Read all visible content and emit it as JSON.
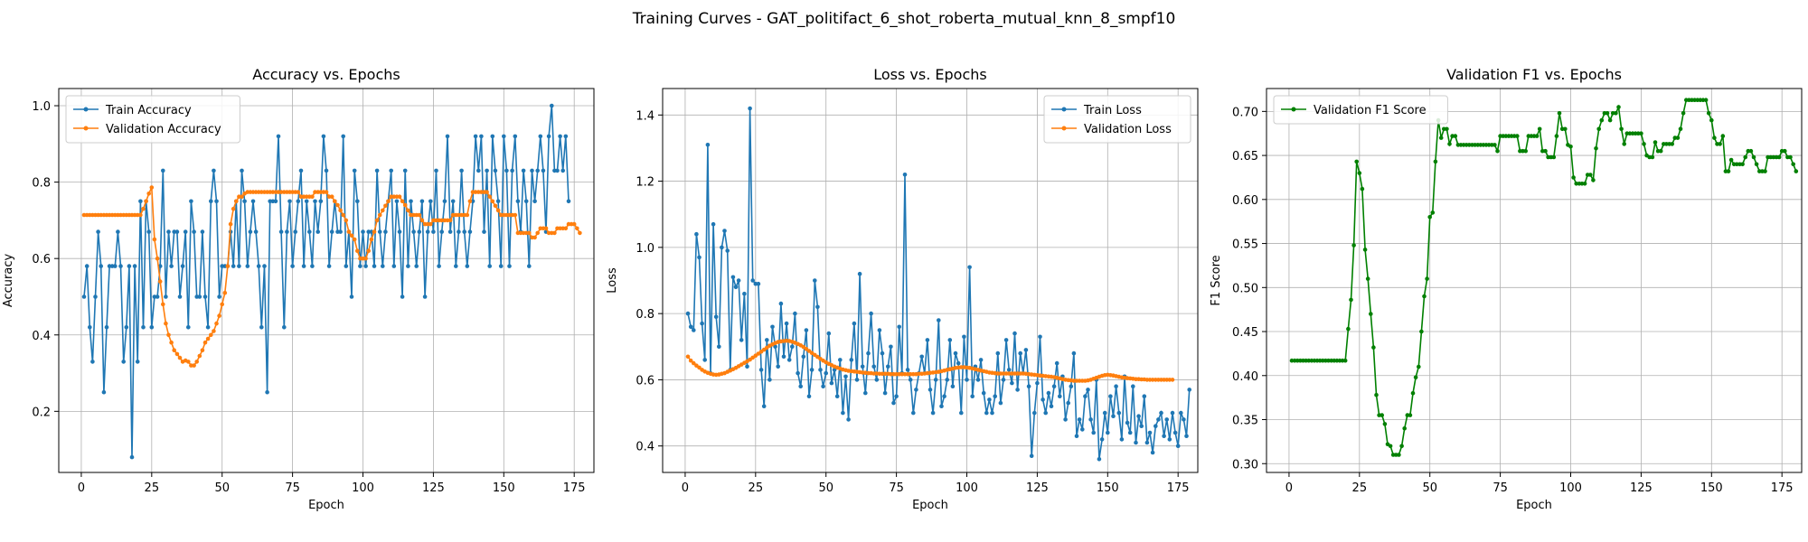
{
  "figure_title": "Training Curves - GAT_politifact_6_shot_roberta_mutual_knn_8_smpf10",
  "colors": {
    "train": "#1f77b4",
    "validation": "#ff7f0e",
    "f1": "#008000",
    "grid": "#b0b0b0"
  },
  "chart_data": [
    {
      "type": "line",
      "title": "Accuracy vs. Epochs",
      "xlabel": "Epoch",
      "ylabel": "Accuracy",
      "xlim": [
        -8,
        182
      ],
      "ylim": [
        0.04,
        1.045
      ],
      "xticks": [
        0,
        25,
        50,
        75,
        100,
        125,
        150,
        175
      ],
      "yticks": [
        0.2,
        0.4,
        0.6,
        0.8,
        1.0
      ],
      "ytick_decimals": 1,
      "grid": true,
      "legend": "top-left",
      "series": [
        {
          "name": "Train Accuracy",
          "color": "#1f77b4",
          "x_start": 1,
          "values": [
            0.5,
            0.58,
            0.42,
            0.33,
            0.5,
            0.67,
            0.58,
            0.25,
            0.42,
            0.58,
            0.58,
            0.58,
            0.67,
            0.58,
            0.33,
            0.42,
            0.58,
            0.08,
            0.58,
            0.33,
            0.75,
            0.42,
            0.75,
            0.67,
            0.42,
            0.5,
            0.5,
            0.58,
            0.83,
            0.5,
            0.67,
            0.58,
            0.67,
            0.67,
            0.5,
            0.58,
            0.67,
            0.42,
            0.75,
            0.67,
            0.5,
            0.5,
            0.67,
            0.5,
            0.42,
            0.75,
            0.83,
            0.75,
            0.5,
            0.58,
            0.58,
            0.58,
            0.67,
            0.58,
            0.75,
            0.58,
            0.83,
            0.75,
            0.58,
            0.67,
            0.75,
            0.67,
            0.58,
            0.42,
            0.58,
            0.25,
            0.75,
            0.75,
            0.75,
            0.92,
            0.67,
            0.42,
            0.67,
            0.75,
            0.58,
            0.67,
            0.75,
            0.83,
            0.58,
            0.75,
            0.67,
            0.58,
            0.75,
            0.67,
            0.75,
            0.92,
            0.83,
            0.58,
            0.67,
            0.75,
            0.67,
            0.67,
            0.92,
            0.58,
            0.67,
            0.5,
            0.83,
            0.75,
            0.58,
            0.67,
            0.58,
            0.67,
            0.67,
            0.58,
            0.83,
            0.67,
            0.58,
            0.67,
            0.75,
            0.83,
            0.58,
            0.75,
            0.67,
            0.5,
            0.83,
            0.58,
            0.75,
            0.67,
            0.58,
            0.67,
            0.75,
            0.5,
            0.67,
            0.75,
            0.67,
            0.83,
            0.58,
            0.67,
            0.75,
            0.92,
            0.67,
            0.75,
            0.58,
            0.67,
            0.83,
            0.67,
            0.58,
            0.67,
            0.75,
            0.92,
            0.83,
            0.92,
            0.67,
            0.83,
            0.58,
            0.92,
            0.83,
            0.75,
            0.58,
            0.92,
            0.83,
            0.58,
            0.83,
            0.92,
            0.75,
            0.67,
            0.83,
            0.75,
            0.58,
            0.83,
            0.75,
            0.83,
            0.92,
            0.83,
            0.67,
            0.92,
            1.0,
            0.83,
            0.83,
            0.92,
            0.83,
            0.92,
            0.75
          ]
        },
        {
          "name": "Validation Accuracy",
          "color": "#ff7f0e",
          "x_start": 1,
          "values": [
            0.714,
            0.714,
            0.714,
            0.714,
            0.714,
            0.714,
            0.714,
            0.714,
            0.714,
            0.714,
            0.714,
            0.714,
            0.714,
            0.714,
            0.714,
            0.714,
            0.714,
            0.714,
            0.714,
            0.714,
            0.714,
            0.73,
            0.75,
            0.77,
            0.786,
            0.65,
            0.6,
            0.54,
            0.48,
            0.43,
            0.4,
            0.38,
            0.36,
            0.35,
            0.34,
            0.33,
            0.333,
            0.33,
            0.32,
            0.32,
            0.33,
            0.345,
            0.36,
            0.38,
            0.39,
            0.4,
            0.41,
            0.43,
            0.45,
            0.48,
            0.51,
            0.58,
            0.69,
            0.73,
            0.75,
            0.762,
            0.762,
            0.77,
            0.774,
            0.774,
            0.774,
            0.774,
            0.774,
            0.774,
            0.774,
            0.774,
            0.774,
            0.774,
            0.774,
            0.774,
            0.774,
            0.774,
            0.774,
            0.774,
            0.774,
            0.774,
            0.774,
            0.762,
            0.762,
            0.762,
            0.762,
            0.762,
            0.774,
            0.774,
            0.774,
            0.774,
            0.774,
            0.762,
            0.762,
            0.75,
            0.74,
            0.726,
            0.714,
            0.7,
            0.67,
            0.66,
            0.65,
            0.62,
            0.6,
            0.6,
            0.6,
            0.62,
            0.65,
            0.67,
            0.7,
            0.714,
            0.726,
            0.738,
            0.75,
            0.762,
            0.762,
            0.762,
            0.762,
            0.75,
            0.74,
            0.726,
            0.714,
            0.714,
            0.714,
            0.714,
            0.7,
            0.69,
            0.69,
            0.69,
            0.7,
            0.7,
            0.7,
            0.7,
            0.7,
            0.7,
            0.7,
            0.714,
            0.714,
            0.714,
            0.714,
            0.714,
            0.714,
            0.75,
            0.774,
            0.774,
            0.774,
            0.774,
            0.774,
            0.774,
            0.762,
            0.75,
            0.738,
            0.726,
            0.714,
            0.714,
            0.714,
            0.714,
            0.714,
            0.714,
            0.667,
            0.667,
            0.667,
            0.667,
            0.667,
            0.655,
            0.655,
            0.667,
            0.679,
            0.679,
            0.679,
            0.667,
            0.667,
            0.667,
            0.679,
            0.679,
            0.679,
            0.679,
            0.69,
            0.69,
            0.69,
            0.679,
            0.667
          ]
        }
      ]
    },
    {
      "type": "line",
      "title": "Loss vs. Epochs",
      "xlabel": "Epoch",
      "ylabel": "Loss",
      "xlim": [
        -8,
        182
      ],
      "ylim": [
        0.32,
        1.48
      ],
      "xticks": [
        0,
        25,
        50,
        75,
        100,
        125,
        150,
        175
      ],
      "yticks": [
        0.4,
        0.6,
        0.8,
        1.0,
        1.2,
        1.4
      ],
      "ytick_decimals": 1,
      "grid": true,
      "legend": "top-right",
      "series": [
        {
          "name": "Train Loss",
          "color": "#1f77b4",
          "x_start": 1,
          "values": [
            0.8,
            0.76,
            0.75,
            1.04,
            0.97,
            0.77,
            0.66,
            1.31,
            0.62,
            1.07,
            0.79,
            0.7,
            1.0,
            1.05,
            0.99,
            0.63,
            0.91,
            0.88,
            0.9,
            0.72,
            0.86,
            0.64,
            1.42,
            0.9,
            0.89,
            0.89,
            0.63,
            0.52,
            0.72,
            0.6,
            0.76,
            0.7,
            0.64,
            0.83,
            0.67,
            0.77,
            0.66,
            0.7,
            0.8,
            0.62,
            0.58,
            0.67,
            0.75,
            0.55,
            0.63,
            0.9,
            0.82,
            0.63,
            0.58,
            0.62,
            0.74,
            0.59,
            0.63,
            0.55,
            0.66,
            0.5,
            0.61,
            0.48,
            0.66,
            0.77,
            0.6,
            0.92,
            0.64,
            0.56,
            0.68,
            0.8,
            0.64,
            0.6,
            0.75,
            0.68,
            0.56,
            0.64,
            0.7,
            0.53,
            0.55,
            0.76,
            0.62,
            1.22,
            0.63,
            0.6,
            0.5,
            0.57,
            0.62,
            0.67,
            0.62,
            0.72,
            0.57,
            0.5,
            0.6,
            0.78,
            0.52,
            0.55,
            0.6,
            0.72,
            0.58,
            0.68,
            0.65,
            0.5,
            0.73,
            0.6,
            0.94,
            0.55,
            0.64,
            0.6,
            0.66,
            0.56,
            0.5,
            0.54,
            0.5,
            0.55,
            0.68,
            0.53,
            0.6,
            0.72,
            0.63,
            0.59,
            0.74,
            0.57,
            0.68,
            0.62,
            0.69,
            0.58,
            0.37,
            0.5,
            0.59,
            0.73,
            0.54,
            0.5,
            0.56,
            0.52,
            0.58,
            0.65,
            0.55,
            0.61,
            0.48,
            0.53,
            0.58,
            0.68,
            0.43,
            0.48,
            0.45,
            0.55,
            0.57,
            0.48,
            0.44,
            0.6,
            0.36,
            0.42,
            0.5,
            0.44,
            0.55,
            0.49,
            0.58,
            0.5,
            0.42,
            0.61,
            0.47,
            0.44,
            0.58,
            0.41,
            0.49,
            0.46,
            0.55,
            0.41,
            0.44,
            0.38,
            0.46,
            0.48,
            0.5,
            0.43,
            0.48,
            0.42,
            0.5,
            0.44,
            0.4,
            0.5,
            0.48,
            0.43,
            0.57
          ]
        },
        {
          "name": "Validation Loss",
          "color": "#ff7f0e",
          "x_start": 1,
          "values": [
            0.67,
            0.658,
            0.65,
            0.643,
            0.637,
            0.63,
            0.625,
            0.621,
            0.618,
            0.616,
            0.615,
            0.616,
            0.618,
            0.62,
            0.624,
            0.628,
            0.632,
            0.636,
            0.641,
            0.646,
            0.651,
            0.656,
            0.661,
            0.667,
            0.673,
            0.679,
            0.685,
            0.691,
            0.697,
            0.703,
            0.707,
            0.711,
            0.714,
            0.716,
            0.717,
            0.718,
            0.717,
            0.715,
            0.712,
            0.708,
            0.704,
            0.699,
            0.693,
            0.687,
            0.681,
            0.675,
            0.669,
            0.663,
            0.658,
            0.653,
            0.648,
            0.644,
            0.64,
            0.637,
            0.634,
            0.631,
            0.629,
            0.627,
            0.626,
            0.625,
            0.624,
            0.623,
            0.622,
            0.621,
            0.62,
            0.62,
            0.619,
            0.619,
            0.618,
            0.618,
            0.618,
            0.618,
            0.617,
            0.617,
            0.617,
            0.617,
            0.617,
            0.617,
            0.617,
            0.617,
            0.617,
            0.617,
            0.618,
            0.618,
            0.619,
            0.62,
            0.621,
            0.622,
            0.623,
            0.624,
            0.626,
            0.628,
            0.63,
            0.632,
            0.634,
            0.636,
            0.637,
            0.638,
            0.638,
            0.637,
            0.636,
            0.634,
            0.632,
            0.63,
            0.628,
            0.626,
            0.624,
            0.622,
            0.621,
            0.62,
            0.619,
            0.619,
            0.619,
            0.619,
            0.619,
            0.619,
            0.619,
            0.619,
            0.619,
            0.619,
            0.618,
            0.617,
            0.616,
            0.615,
            0.614,
            0.613,
            0.612,
            0.611,
            0.61,
            0.609,
            0.608,
            0.606,
            0.604,
            0.602,
            0.6,
            0.599,
            0.598,
            0.597,
            0.597,
            0.597,
            0.597,
            0.597,
            0.598,
            0.6,
            0.603,
            0.606,
            0.609,
            0.612,
            0.614,
            0.615,
            0.614,
            0.613,
            0.611,
            0.609,
            0.607,
            0.606,
            0.605,
            0.604,
            0.603,
            0.602,
            0.602,
            0.601,
            0.601,
            0.6,
            0.6,
            0.6,
            0.6,
            0.6,
            0.6,
            0.6,
            0.6,
            0.6,
            0.6
          ]
        }
      ]
    },
    {
      "type": "line",
      "title": "Validation F1 vs. Epochs",
      "xlabel": "Epoch",
      "ylabel": "F1 Score",
      "xlim": [
        -8,
        182
      ],
      "ylim": [
        0.29,
        0.726
      ],
      "xticks": [
        0,
        25,
        50,
        75,
        100,
        125,
        150,
        175
      ],
      "yticks": [
        0.3,
        0.35,
        0.4,
        0.45,
        0.5,
        0.55,
        0.6,
        0.65,
        0.7
      ],
      "ytick_decimals": 2,
      "grid": true,
      "legend": "top-left",
      "series": [
        {
          "name": "Validation F1 Score",
          "color": "#008000",
          "x_start": 1,
          "values": [
            0.417,
            0.417,
            0.417,
            0.417,
            0.417,
            0.417,
            0.417,
            0.417,
            0.417,
            0.417,
            0.417,
            0.417,
            0.417,
            0.417,
            0.417,
            0.417,
            0.417,
            0.417,
            0.417,
            0.417,
            0.453,
            0.486,
            0.548,
            0.643,
            0.63,
            0.612,
            0.543,
            0.51,
            0.47,
            0.432,
            0.378,
            0.355,
            0.355,
            0.345,
            0.322,
            0.32,
            0.31,
            0.31,
            0.31,
            0.32,
            0.34,
            0.355,
            0.355,
            0.38,
            0.398,
            0.41,
            0.45,
            0.49,
            0.51,
            0.58,
            0.585,
            0.643,
            0.69,
            0.67,
            0.68,
            0.68,
            0.663,
            0.672,
            0.672,
            0.662,
            0.662,
            0.662,
            0.662,
            0.662,
            0.662,
            0.662,
            0.662,
            0.662,
            0.662,
            0.662,
            0.662,
            0.662,
            0.662,
            0.655,
            0.672,
            0.672,
            0.672,
            0.672,
            0.672,
            0.672,
            0.672,
            0.655,
            0.655,
            0.655,
            0.672,
            0.672,
            0.672,
            0.672,
            0.68,
            0.655,
            0.655,
            0.648,
            0.648,
            0.648,
            0.672,
            0.698,
            0.68,
            0.68,
            0.662,
            0.66,
            0.625,
            0.618,
            0.618,
            0.618,
            0.618,
            0.628,
            0.628,
            0.622,
            0.658,
            0.68,
            0.69,
            0.698,
            0.698,
            0.69,
            0.698,
            0.698,
            0.705,
            0.68,
            0.663,
            0.675,
            0.675,
            0.675,
            0.675,
            0.675,
            0.675,
            0.663,
            0.65,
            0.648,
            0.648,
            0.665,
            0.655,
            0.655,
            0.663,
            0.663,
            0.663,
            0.663,
            0.67,
            0.67,
            0.68,
            0.698,
            0.713,
            0.713,
            0.713,
            0.713,
            0.713,
            0.713,
            0.713,
            0.713,
            0.698,
            0.69,
            0.67,
            0.663,
            0.663,
            0.672,
            0.632,
            0.632,
            0.645,
            0.64,
            0.64,
            0.64,
            0.64,
            0.648,
            0.655,
            0.655,
            0.648,
            0.64,
            0.632,
            0.632,
            0.632,
            0.648,
            0.648,
            0.648,
            0.648,
            0.648,
            0.655,
            0.655,
            0.648,
            0.648,
            0.64,
            0.632
          ]
        }
      ]
    }
  ]
}
